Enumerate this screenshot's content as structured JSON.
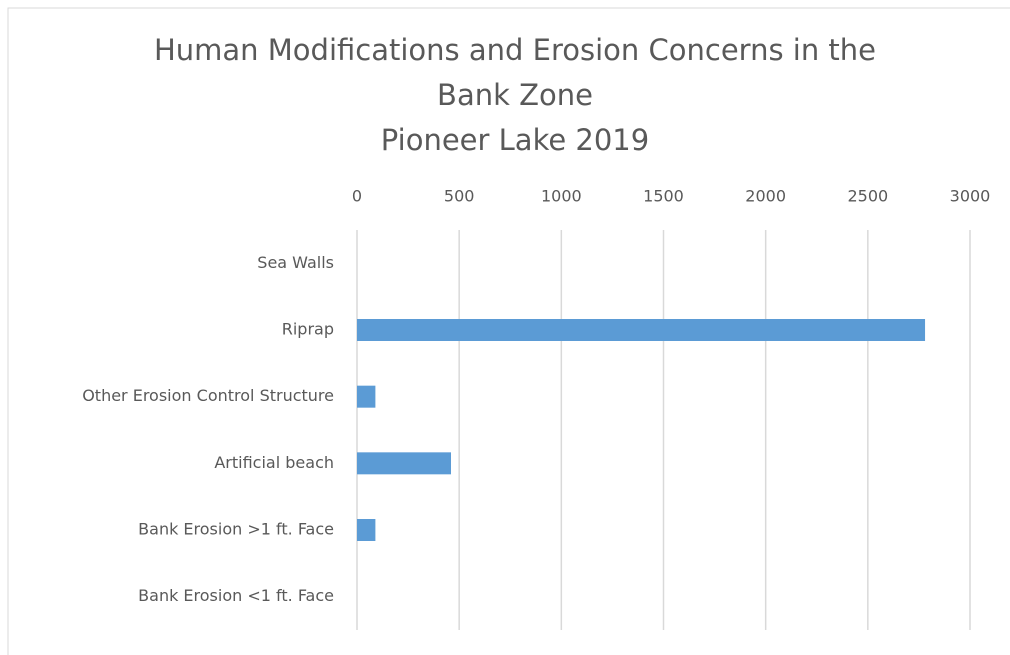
{
  "chart_data": {
    "type": "bar",
    "orientation": "horizontal",
    "title": [
      "Human Modifications and Erosion Concerns in the",
      "Bank Zone",
      "Pioneer Lake 2019"
    ],
    "categories": [
      "Sea Walls",
      "Riprap",
      "Other Erosion Control Structure",
      "Artificial beach",
      "Bank Erosion >1 ft. Face",
      "Bank Erosion <1 ft. Face"
    ],
    "values": [
      0,
      2780,
      90,
      460,
      90,
      0
    ],
    "color": "#5b9bd5",
    "xlim": [
      0,
      3000
    ],
    "xticks": [
      0,
      500,
      1000,
      1500,
      2000,
      2500,
      3000
    ],
    "grid": true,
    "axis_position": "top"
  }
}
